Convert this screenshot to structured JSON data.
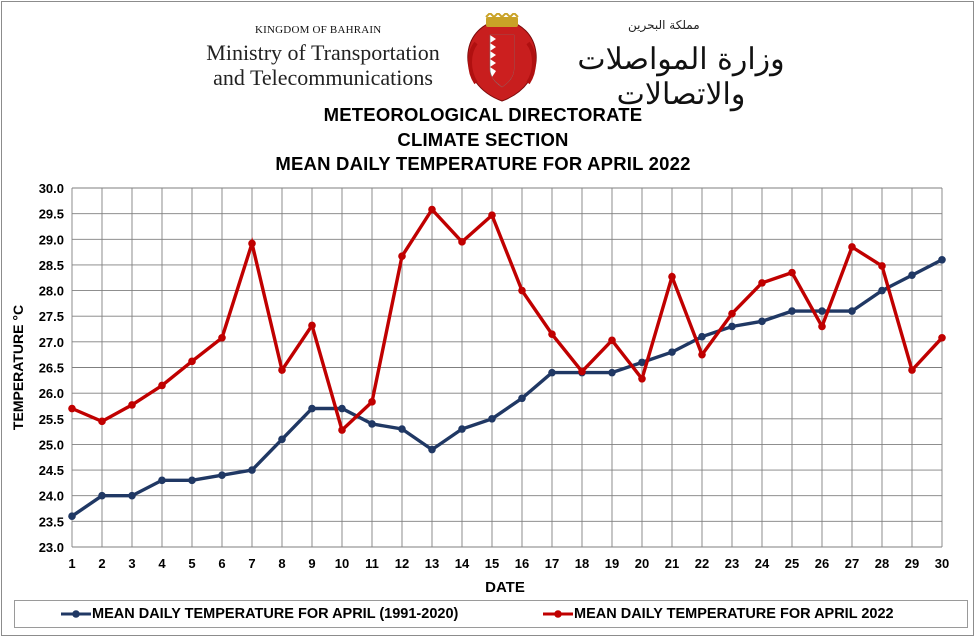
{
  "header": {
    "kingdom": "KINGDOM OF BAHRAIN",
    "ministry_line1": "Ministry of Transportation",
    "ministry_line2": "and Telecommunications",
    "kingdom_ar": "مملكة البحرين",
    "ministry_ar": "وزارة المواصلات والاتصالات"
  },
  "titles": {
    "line1": "METEOROLOGICAL DIRECTORATE",
    "line2": "CLIMATE  SECTION",
    "line3": "MEAN DAILY TEMPERATURE  FOR APRIL 2022"
  },
  "colors": {
    "normal": "#203864",
    "y2022": "#C00000",
    "grid": "#7f7f7f"
  },
  "chart_data": {
    "type": "line",
    "xlabel": "DATE",
    "ylabel": "TEMPERATURE °C",
    "ylim": [
      23.0,
      30.0
    ],
    "y_ticks": [
      "23.0",
      "23.5",
      "24.0",
      "24.5",
      "25.0",
      "25.5",
      "26.0",
      "26.5",
      "27.0",
      "27.5",
      "28.0",
      "28.5",
      "29.0",
      "29.5",
      "30.0"
    ],
    "x": [
      1,
      2,
      3,
      4,
      5,
      6,
      7,
      8,
      9,
      10,
      11,
      12,
      13,
      14,
      15,
      16,
      17,
      18,
      19,
      20,
      21,
      22,
      23,
      24,
      25,
      26,
      27,
      28,
      29,
      30
    ],
    "grid": true,
    "legend_position": "bottom",
    "series": [
      {
        "name": "MEAN DAILY TEMPERATURE FOR APRIL (1991-2020)",
        "color": "#203864",
        "values": [
          23.6,
          24.0,
          24.0,
          24.3,
          24.3,
          24.4,
          24.5,
          25.1,
          25.7,
          25.7,
          25.4,
          25.3,
          24.9,
          25.3,
          25.5,
          25.9,
          26.4,
          26.4,
          26.4,
          26.6,
          26.8,
          27.1,
          27.3,
          27.4,
          27.6,
          27.6,
          27.6,
          28.0,
          28.3,
          28.6
        ]
      },
      {
        "name": "MEAN DAILY TEMPERATURE FOR APRIL 2022",
        "color": "#C00000",
        "values": [
          25.7,
          25.45,
          25.77,
          26.15,
          26.62,
          27.08,
          28.92,
          26.45,
          27.32,
          25.28,
          25.83,
          28.67,
          29.58,
          28.95,
          29.47,
          28.0,
          27.15,
          26.42,
          27.03,
          26.28,
          28.27,
          26.75,
          27.55,
          28.15,
          28.35,
          27.3,
          28.85,
          28.48,
          26.45,
          27.08
        ]
      }
    ]
  }
}
